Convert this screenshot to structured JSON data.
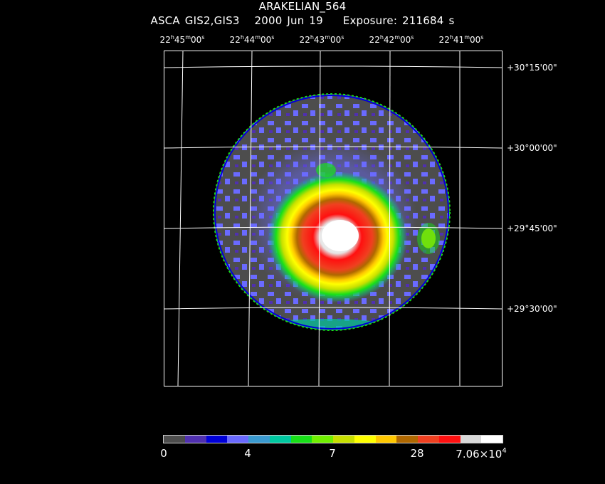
{
  "header": {
    "object_name": "ARAKELIAN_564",
    "instrument": "ASCA GIS2,GIS3",
    "date": "2000 Jun 19",
    "exposure": "Exposure: 211684 s"
  },
  "ra_labels": [
    {
      "h": "22",
      "m": "45",
      "s": "00"
    },
    {
      "h": "22",
      "m": "44",
      "s": "00"
    },
    {
      "h": "22",
      "m": "43",
      "s": "00"
    },
    {
      "h": "22",
      "m": "42",
      "s": "00"
    },
    {
      "h": "22",
      "m": "41",
      "s": "00"
    }
  ],
  "dec_labels": [
    "+30°15'00\"",
    "+30°00'00\"",
    "+29°45'00\"",
    "+29°30'00\""
  ],
  "colorbar": {
    "colors": [
      "#4d4d4d",
      "#5030b0",
      "#0000d8",
      "#6a6aff",
      "#3a9ad0",
      "#00c8a0",
      "#18e018",
      "#70f000",
      "#c8e000",
      "#ffff00",
      "#ffc800",
      "#b06800",
      "#f04020",
      "#ff1010",
      "#d8d8d8",
      "#ffffff"
    ],
    "labels": [
      "0",
      "4",
      "7",
      "28"
    ],
    "max_label": {
      "mantissa": "7.06×10",
      "exponent": "4"
    }
  }
}
